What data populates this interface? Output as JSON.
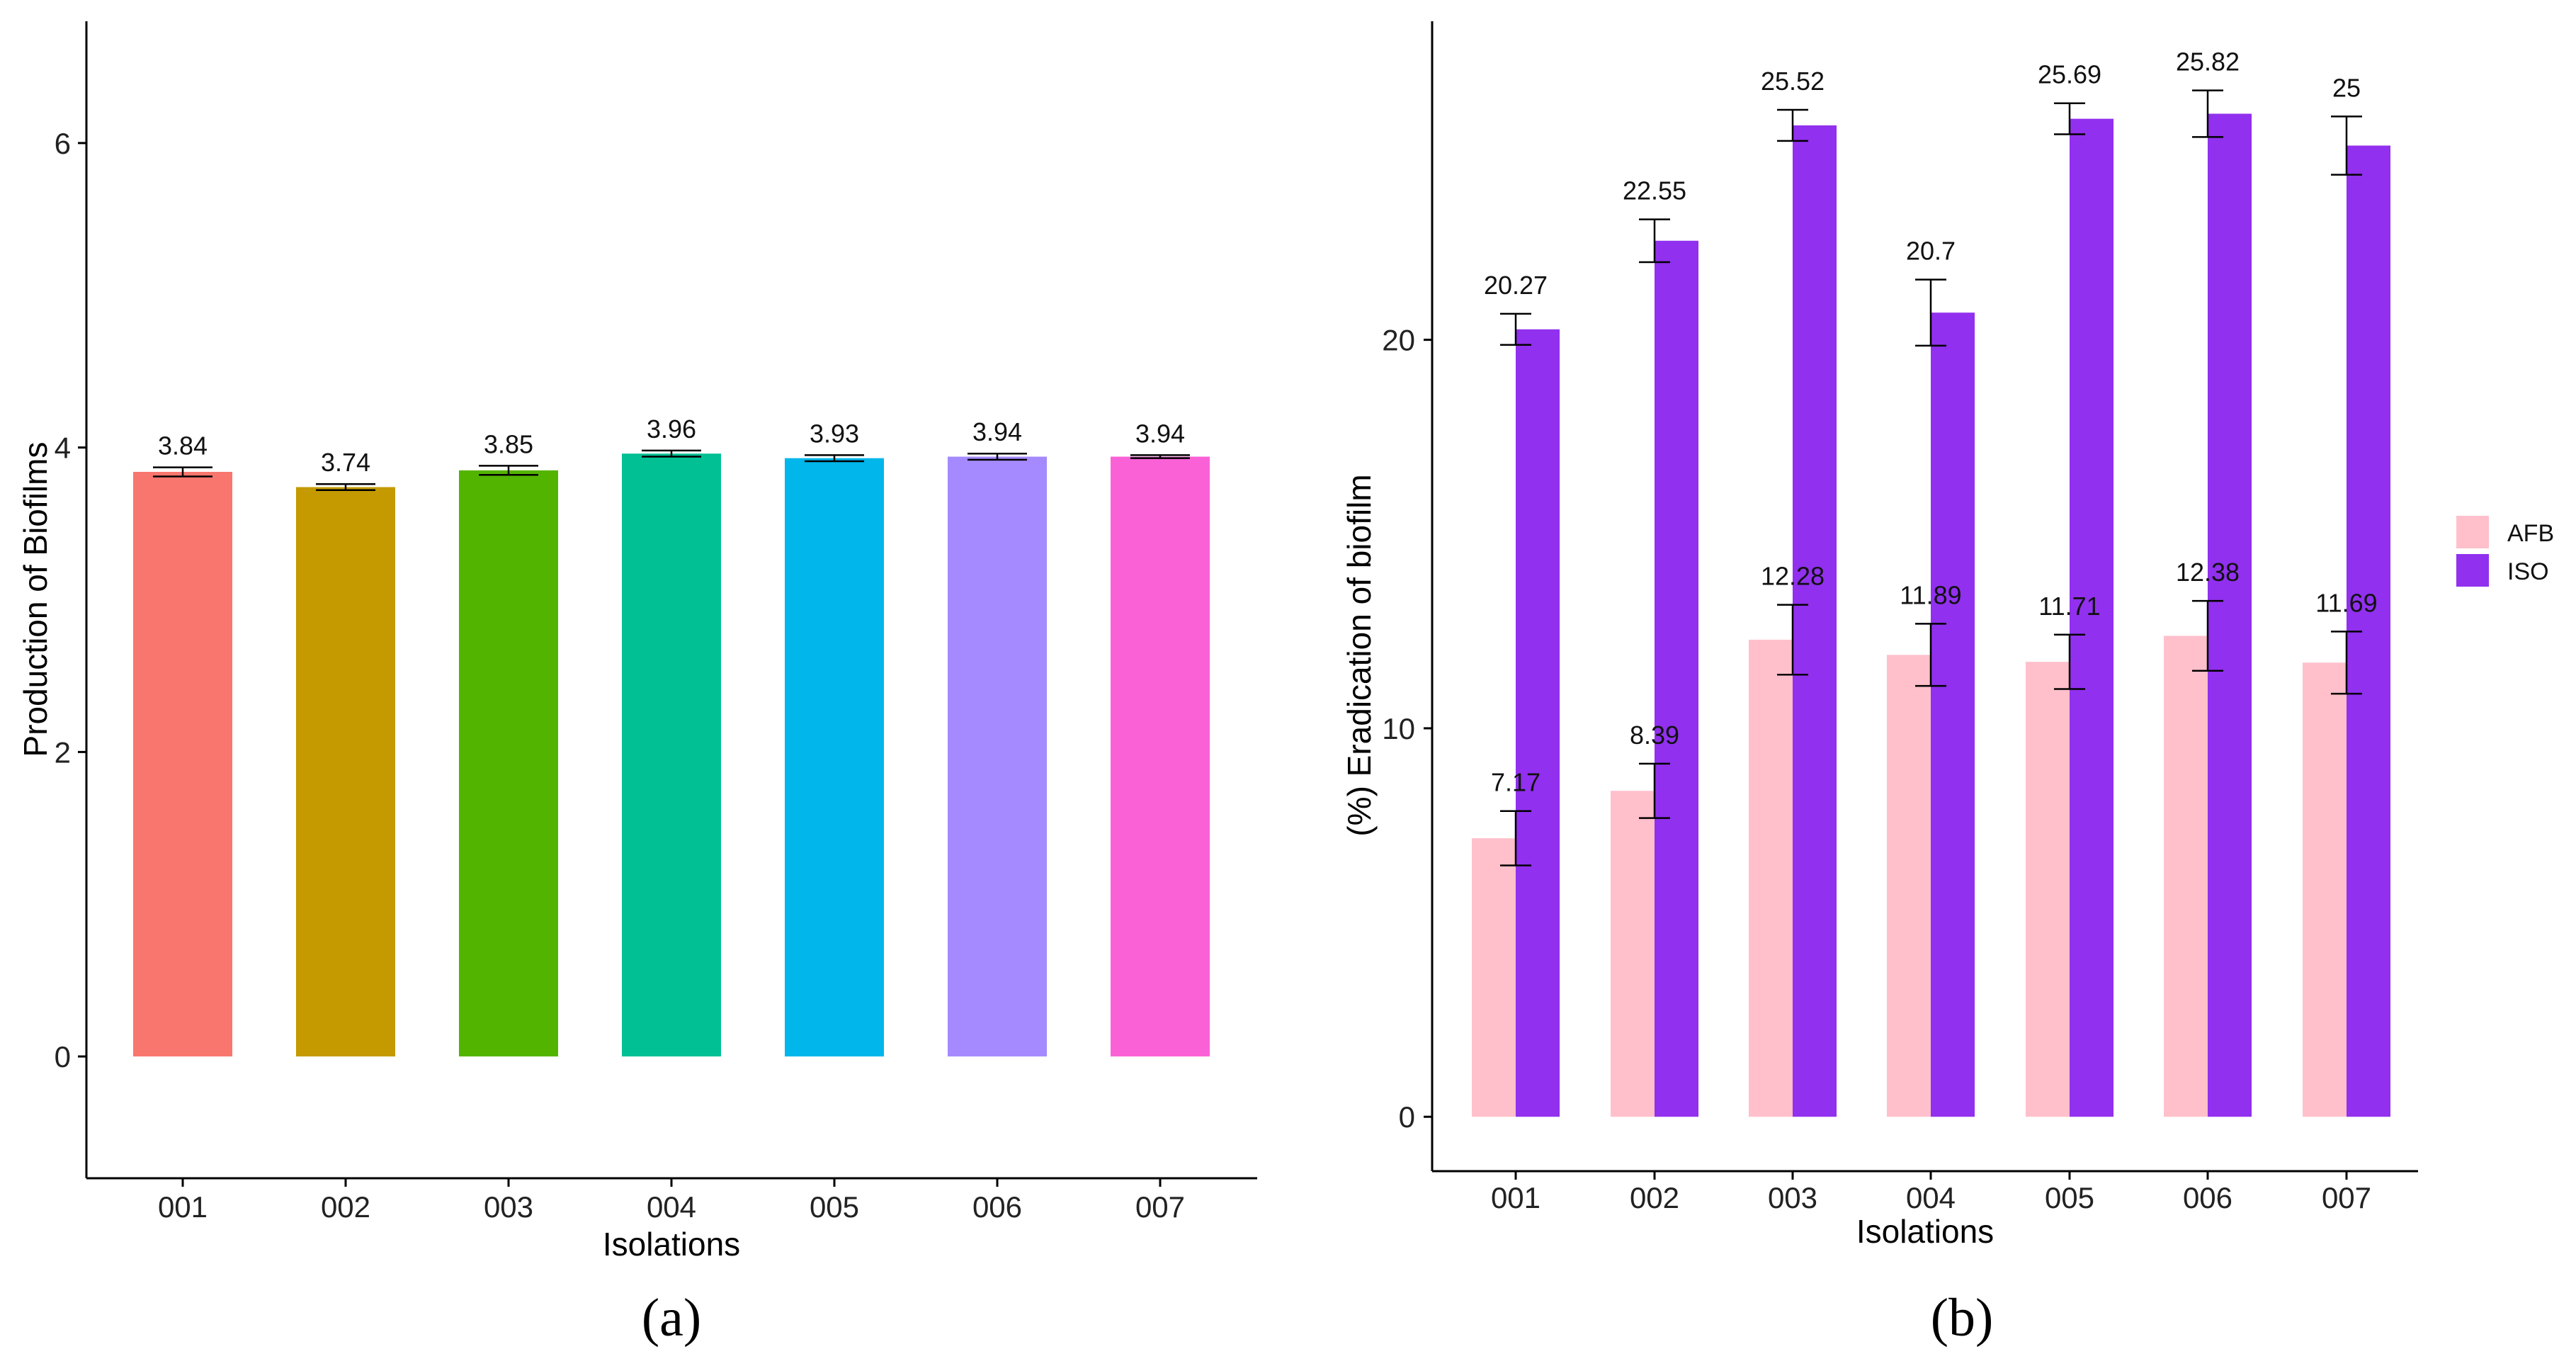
{
  "chart_data": [
    {
      "panel_label": "(a)",
      "type": "bar",
      "xlabel": "Isolations",
      "ylabel": "Production of Biofilms",
      "ylim": [
        -0.8,
        6.8
      ],
      "yticks": [
        0,
        2,
        4,
        6
      ],
      "categories": [
        "001",
        "002",
        "003",
        "004",
        "005",
        "006",
        "007"
      ],
      "values": [
        3.84,
        3.74,
        3.85,
        3.96,
        3.93,
        3.94,
        3.94
      ],
      "labels": [
        "3.84",
        "3.74",
        "3.85",
        "3.96",
        "3.93",
        "3.94",
        "3.94"
      ],
      "errors": [
        0.03,
        0.02,
        0.03,
        0.02,
        0.02,
        0.02,
        0.01
      ],
      "colors": [
        "#F8766D",
        "#C49A00",
        "#53B400",
        "#00C094",
        "#00B6EB",
        "#A58AFF",
        "#FB61D7"
      ],
      "grid": false,
      "legend": "none"
    },
    {
      "panel_label": "(b)",
      "type": "bar",
      "xlabel": "Isolations",
      "ylabel": "(%) Eradication of biofilm",
      "ylim": [
        -1.4,
        28.2
      ],
      "yticks": [
        0,
        10,
        20
      ],
      "categories": [
        "001",
        "002",
        "003",
        "004",
        "005",
        "006",
        "007"
      ],
      "series": [
        {
          "name": "AFB",
          "color": "#FFC0CB",
          "values": [
            7.17,
            8.39,
            12.28,
            11.89,
            11.71,
            12.38,
            11.69
          ],
          "labels": [
            "7.17",
            "8.39",
            "12.28",
            "11.89",
            "11.71",
            "12.38",
            "11.69"
          ],
          "errors": [
            0.7,
            0.7,
            0.9,
            0.8,
            0.7,
            0.9,
            0.8
          ]
        },
        {
          "name": "ISO",
          "color": "#9130EE",
          "values": [
            20.27,
            22.55,
            25.52,
            20.7,
            25.69,
            25.82,
            25
          ],
          "labels": [
            "20.27",
            "22.55",
            "25.52",
            "20.7",
            "25.69",
            "25.82",
            "25"
          ],
          "errors": [
            0.4,
            0.55,
            0.4,
            0.85,
            0.4,
            0.6,
            0.75
          ]
        }
      ],
      "grid": false,
      "legend": "right"
    }
  ]
}
